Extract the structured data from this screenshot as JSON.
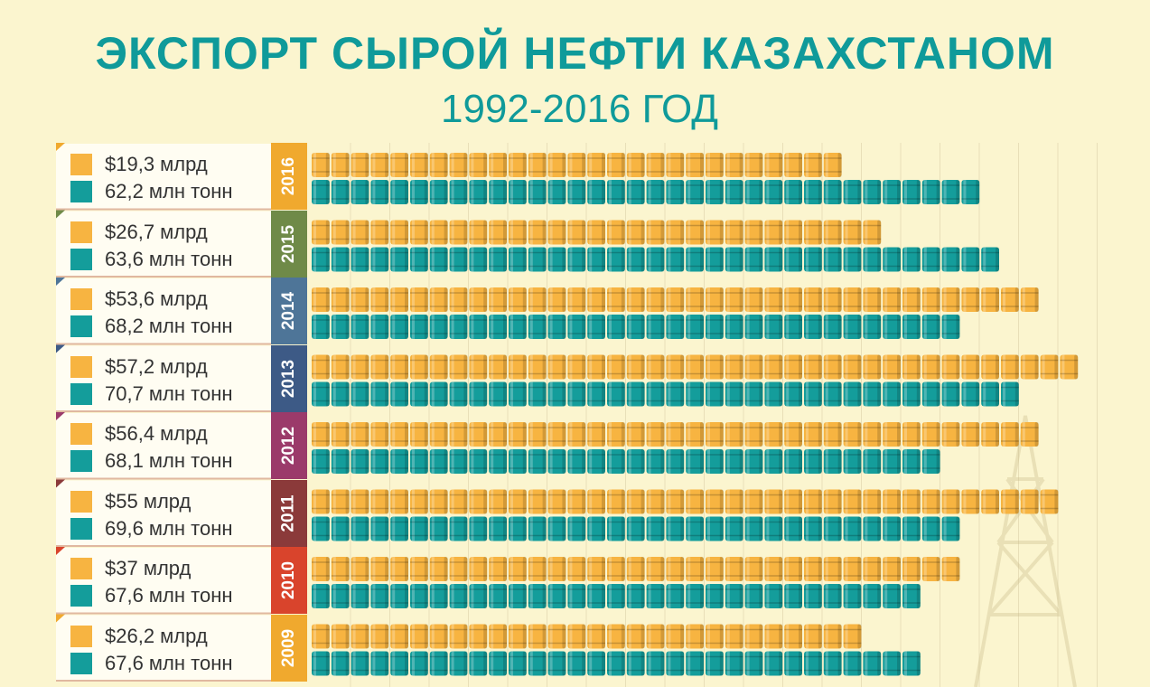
{
  "header": {
    "title": "ЭКСПОРТ СЫРОЙ НЕФТИ КАЗАХСТАНОМ",
    "subtitle": "1992-2016 ГОД"
  },
  "colors": {
    "background": "#fbf5cf",
    "value_barrel": "#f7b441",
    "volume_barrel": "#149d9b",
    "title": "#0f9a9a"
  },
  "chart_data": {
    "type": "bar",
    "orientation": "horizontal",
    "title": "ЭКСПОРТ СЫРОЙ НЕФТИ КАЗАХСТАНОМ",
    "subtitle": "1992-2016 ГОД",
    "categories": [
      "2016",
      "2015",
      "2014",
      "2013",
      "2012",
      "2011",
      "2010",
      "2009"
    ],
    "series": [
      {
        "color": "#f7b441",
        "values": [
          19.3,
          26.7,
          53.6,
          57.2,
          56.4,
          55,
          37,
          26.2
        ],
        "labels": [
          "$19,3 млрд",
          "$26,7 млрд",
          "$53,6 млрд",
          "$57,2 млрд",
          "$56,4 млрд",
          "$55 млрд",
          "$37 млрд",
          "$26,2 млрд"
        ],
        "barrels": [
          27,
          29,
          37,
          39,
          37,
          38,
          33,
          28
        ]
      },
      {
        "color": "#149d9b",
        "values": [
          62.2,
          63.6,
          68.2,
          70.7,
          68.1,
          69.6,
          67.6,
          67.6
        ],
        "labels": [
          "62,2 млн тонн",
          "63,6 млн тонн",
          "68,2 млн тонн",
          "70,7 млн тонн",
          "68,1 млн тонн",
          "69,6 млн тонн",
          "67,6 млн тонн",
          "67,6 млн тонн"
        ],
        "barrels": [
          34,
          35,
          33,
          36,
          32,
          33,
          31,
          31
        ]
      }
    ],
    "year_colors": [
      "#f0a92e",
      "#6f8a48",
      "#4e7598",
      "#3d5a86",
      "#9b3a6a",
      "#8b3a3a",
      "#d9442c",
      "#f0a92e"
    ],
    "grid": true
  }
}
